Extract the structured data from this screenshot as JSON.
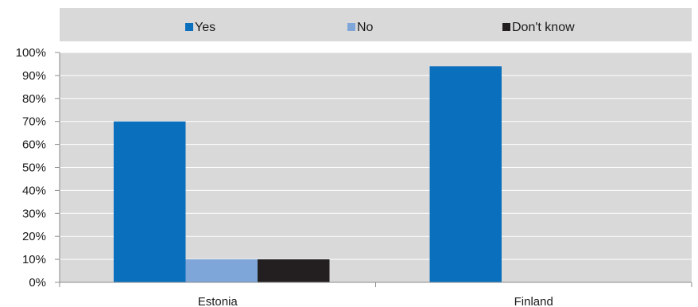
{
  "chart_data": {
    "type": "bar",
    "title": "",
    "xlabel": "",
    "ylabel": "",
    "categories": [
      "Estonia",
      "Finland"
    ],
    "series": [
      {
        "name": "Yes",
        "values": [
          70,
          94
        ],
        "color": "#0a6fbd"
      },
      {
        "name": "No",
        "values": [
          10,
          0
        ],
        "color": "#7ea6d9"
      },
      {
        "name": "Don't know",
        "values": [
          10,
          0
        ],
        "color": "#231f20"
      }
    ],
    "ylim": [
      0,
      100
    ],
    "yticks": [
      0,
      10,
      20,
      30,
      40,
      50,
      60,
      70,
      80,
      90,
      100
    ],
    "ytick_labels": [
      "0%",
      "10%",
      "20%",
      "30%",
      "40%",
      "50%",
      "60%",
      "70%",
      "80%",
      "90%",
      "100%"
    ],
    "grid": true,
    "legend_position": "top",
    "plot_background": "#d9d9d9",
    "gridline_color": "#ffffff"
  }
}
